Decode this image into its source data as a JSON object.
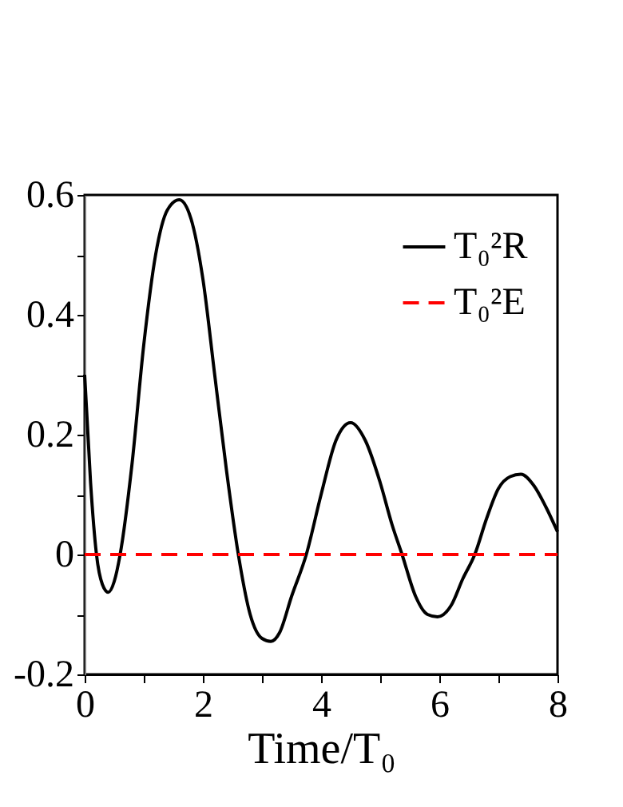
{
  "chart_data": {
    "type": "line",
    "xlabel": "Time/T₀",
    "xlim": [
      0,
      8
    ],
    "xticks": [
      0,
      {
        "value": 1,
        "label": null
      },
      2,
      {
        "value": 3,
        "label": null
      },
      4,
      {
        "value": 5,
        "label": null
      },
      6,
      {
        "value": 7,
        "label": null
      },
      8
    ],
    "ylim": [
      -0.2,
      0.6
    ],
    "yticks": [
      -0.2,
      {
        "value": -0.1,
        "label": null
      },
      0,
      {
        "value": 0.1,
        "label": null
      },
      0.2,
      {
        "value": 0.3,
        "label": null
      },
      0.4,
      {
        "value": 0.5,
        "label": null
      },
      0.6
    ],
    "grid": false,
    "legend": "top right",
    "marker": "none",
    "series": [
      {
        "name": "T₀²R",
        "color": "#000000",
        "line_style": "solid",
        "x": [
          0,
          0.1,
          0.2,
          0.3,
          0.4,
          0.5,
          0.6,
          0.8,
          1.0,
          1.2,
          1.4,
          1.6,
          1.8,
          2.0,
          2.2,
          2.4,
          2.6,
          2.8,
          3.0,
          3.15,
          3.3,
          3.5,
          3.75,
          4.0,
          4.25,
          4.5,
          4.75,
          5.0,
          5.2,
          5.37,
          5.6,
          5.8,
          5.97,
          6.2,
          6.4,
          6.6,
          6.8,
          7.0,
          7.2,
          7.38,
          7.6,
          7.8,
          8.0
        ],
        "values": [
          0.3,
          0.12,
          0.0,
          -0.05,
          -0.063,
          -0.045,
          0.0,
          0.15,
          0.35,
          0.5,
          0.575,
          0.592,
          0.56,
          0.46,
          0.3,
          0.14,
          0.0,
          -0.1,
          -0.14,
          -0.145,
          -0.13,
          -0.07,
          0.0,
          0.1,
          0.19,
          0.22,
          0.19,
          0.12,
          0.05,
          0.0,
          -0.07,
          -0.1,
          -0.104,
          -0.085,
          -0.04,
          0.0,
          0.06,
          0.11,
          0.13,
          0.134,
          0.115,
          0.08,
          0.038
        ]
      },
      {
        "name": "T₀²E",
        "color": "#ff0000",
        "line_style": "dashed",
        "x": [
          0,
          8
        ],
        "values": [
          0,
          0
        ]
      }
    ]
  }
}
